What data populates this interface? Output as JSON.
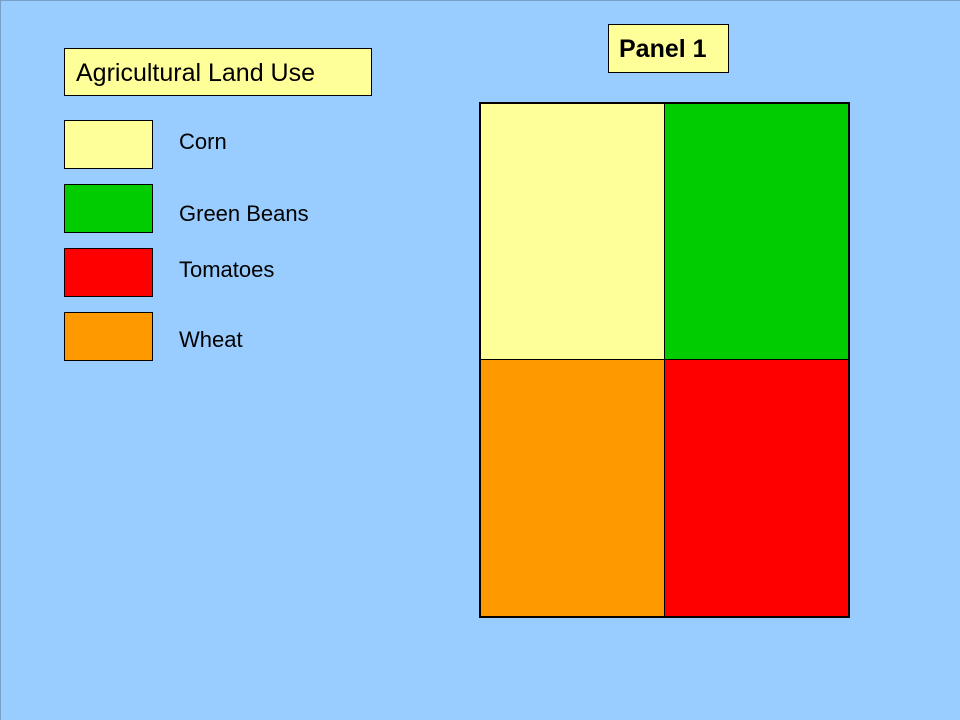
{
  "title": "Agricultural Land Use",
  "panel_label": "Panel 1",
  "legend": [
    {
      "label": "Corn",
      "color": "#ffff99"
    },
    {
      "label": "Green Beans",
      "color": "#00cc00"
    },
    {
      "label": "Tomatoes",
      "color": "#ff0000"
    },
    {
      "label": "Wheat",
      "color": "#ff9900"
    }
  ],
  "plots": {
    "top_left": {
      "crop": "Corn",
      "color": "#ffff99"
    },
    "top_right": {
      "crop": "Green Beans",
      "color": "#00cc00"
    },
    "bottom_left": {
      "crop": "Wheat",
      "color": "#ff9900"
    },
    "bottom_right": {
      "crop": "Tomatoes",
      "color": "#ff0000"
    }
  },
  "colors": {
    "background": "#99ccff",
    "label_box": "#ffff99"
  }
}
